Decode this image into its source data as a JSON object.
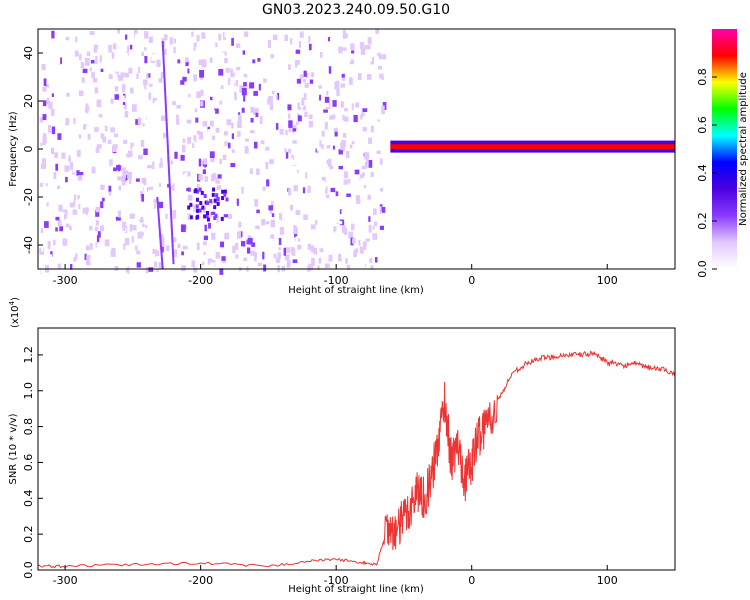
{
  "title": "GN03.2023.240.09.50.G10",
  "chart_data": [
    {
      "type": "heatmap",
      "xlabel": "Height of straight line (km)",
      "ylabel": "Frequency (Hz)",
      "xlim": [
        -320,
        150
      ],
      "ylim": [
        -50,
        50
      ],
      "xticks": [
        -300,
        -200,
        -100,
        0,
        100
      ],
      "yticks": [
        -40,
        -20,
        0,
        20,
        40
      ],
      "colorbar": {
        "label": "Normalized spectral amplitude",
        "range": [
          0,
          1
        ],
        "ticks": [
          "0.0",
          "0.2",
          "0.4",
          "0.6",
          "0.8"
        ],
        "colors": [
          "#ffffff",
          "#e2c8ff",
          "#8a3bff",
          "#4b00e0",
          "#0000ff",
          "#00ffff",
          "#00ff00",
          "#ffff00",
          "#ff0000",
          "#ff00aa"
        ]
      },
      "features": [
        {
          "name": "noise-band",
          "x_range": [
            -320,
            -65
          ],
          "y_range": [
            -50,
            50
          ],
          "amplitude": 0.15
        },
        {
          "name": "dopper-line-a",
          "x": [
            -228,
            -220
          ],
          "y": [
            45,
            -48
          ],
          "amplitude": 0.3
        },
        {
          "name": "dopper-line-b",
          "x": [
            -232,
            -228
          ],
          "y": [
            -20,
            -50
          ],
          "amplitude": 0.3
        },
        {
          "name": "blob",
          "x": -195,
          "y": -22,
          "amplitude": 0.3
        },
        {
          "name": "signal-line",
          "x_range": [
            -60,
            150
          ],
          "y": 1,
          "amplitude": 0.9
        }
      ]
    },
    {
      "type": "line",
      "xlabel": "Height of straight line (km)",
      "ylabel": "SNR (10 * v/v)",
      "yexponent_label": "(x10",
      "yexponent_sup": "4",
      "yexponent_close": ")",
      "xlim": [
        -320,
        150
      ],
      "ylim": [
        0,
        1.35
      ],
      "xticks": [
        -300,
        -200,
        -100,
        0,
        100
      ],
      "yticks": [
        0.0,
        0.2,
        0.4,
        0.6,
        0.8,
        1.0,
        1.2
      ],
      "line_color": "#ee3333",
      "series": [
        {
          "x": [
            -320,
            -300,
            -250,
            -200,
            -150,
            -120,
            -100,
            -80,
            -70,
            -62,
            -55,
            -50,
            -45,
            -40,
            -35,
            -30,
            -25,
            -20,
            -15,
            -10,
            -5,
            0,
            5,
            10,
            20,
            30,
            40,
            50,
            60,
            70,
            80,
            90,
            100,
            110,
            120,
            130,
            140,
            150
          ],
          "y": [
            0.02,
            0.02,
            0.03,
            0.04,
            0.02,
            0.05,
            0.06,
            0.04,
            0.03,
            0.25,
            0.2,
            0.3,
            0.35,
            0.45,
            0.4,
            0.5,
            0.7,
            0.95,
            0.6,
            0.7,
            0.5,
            0.6,
            0.75,
            0.8,
            0.95,
            1.1,
            1.15,
            1.18,
            1.19,
            1.2,
            1.2,
            1.21,
            1.16,
            1.14,
            1.15,
            1.13,
            1.12,
            1.1
          ]
        }
      ]
    }
  ]
}
